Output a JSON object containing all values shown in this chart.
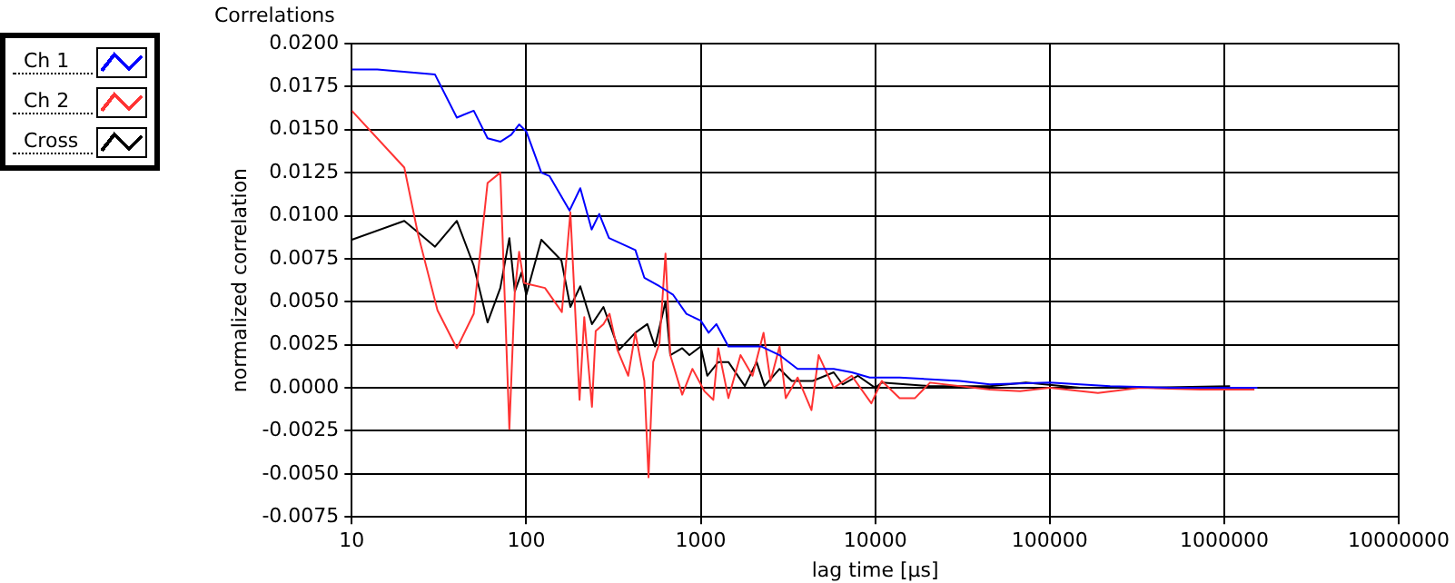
{
  "chart_data": {
    "type": "line",
    "title": "Correlations",
    "xlabel": "lag time [µs]",
    "ylabel": "normalized correlation",
    "log": "x",
    "xlim": [
      10,
      10000000
    ],
    "xticks": [
      10,
      100,
      1000,
      10000,
      100000,
      1000000,
      10000000
    ],
    "ylim": [
      -0.0075,
      0.02
    ],
    "yticks": [
      {
        "value": -0.0075,
        "label": "-0.0075"
      },
      {
        "value": -0.005,
        "label": "-0.0050"
      },
      {
        "value": -0.0025,
        "label": "-0.0025"
      },
      {
        "value": 0,
        "label": "0.0000"
      },
      {
        "value": 0.0025,
        "label": "0.0025"
      },
      {
        "value": 0.005,
        "label": "0.0050"
      },
      {
        "value": 0.0075,
        "label": "0.0075"
      },
      {
        "value": 0.01,
        "label": "0.0100"
      },
      {
        "value": 0.0125,
        "label": "0.0125"
      },
      {
        "value": 0.015,
        "label": "0.0150"
      },
      {
        "value": 0.0175,
        "label": "0.0175"
      },
      {
        "value": 0.02,
        "label": "0.0200"
      }
    ],
    "grid": true,
    "legend": "top left",
    "marker": "none",
    "line_style": "solid",
    "series": [
      {
        "name": "Ch 1",
        "color": "#0000ff",
        "x": [
          10,
          14,
          30,
          40,
          50,
          60,
          71,
          82,
          91,
          100,
          122,
          136,
          177,
          204,
          237,
          262,
          298,
          422,
          475,
          580,
          695,
          828,
          1000,
          1110,
          1230,
          1440,
          2230,
          2830,
          3590,
          4930,
          5780,
          7330,
          9300,
          13800,
          30500,
          45400,
          100000,
          222000,
          490000,
          1550000
        ],
        "values": [
          0.0185,
          0.0185,
          0.0182,
          0.0157,
          0.0161,
          0.0145,
          0.0143,
          0.0147,
          0.0153,
          0.0149,
          0.0125,
          0.0123,
          0.0103,
          0.0116,
          0.0092,
          0.0101,
          0.0087,
          0.008,
          0.0064,
          0.0059,
          0.0054,
          0.0043,
          0.0039,
          0.0032,
          0.0037,
          0.0024,
          0.0024,
          0.0019,
          0.0011,
          0.0011,
          0.0011,
          0.0009,
          0.0006,
          0.0006,
          0.0004,
          0.0002,
          0.0003,
          0.0001,
          0.0,
          0.0
        ]
      },
      {
        "name": "Ch 2",
        "color": "#ff3333",
        "x": [
          10,
          20,
          24,
          31,
          40,
          50,
          60,
          71,
          80,
          86,
          91,
          97,
          105,
          128,
          160,
          179,
          202,
          215,
          238,
          250,
          277,
          300,
          333,
          384,
          422,
          475,
          502,
          534,
          580,
          628,
          669,
          783,
          896,
          1050,
          1180,
          1260,
          1440,
          1690,
          1980,
          2290,
          2510,
          2830,
          3070,
          3590,
          4310,
          4740,
          5780,
          7330,
          9500,
          10900,
          13800,
          16900,
          20600,
          45400,
          67600,
          100000,
          189000,
          330000,
          728000,
          1490000
        ],
        "values": [
          0.0161,
          0.0128,
          0.0089,
          0.0045,
          0.0023,
          0.0043,
          0.0119,
          0.0125,
          -0.0024,
          0.0056,
          0.0079,
          0.0061,
          0.006,
          0.0058,
          0.0044,
          0.0102,
          -0.0007,
          0.0041,
          -0.0011,
          0.0033,
          0.0037,
          0.0043,
          0.0022,
          0.0007,
          0.0032,
          0.0004,
          -0.0052,
          0.0015,
          0.0026,
          0.0078,
          0.0019,
          -0.0004,
          0.0011,
          -0.0002,
          -0.0007,
          0.0023,
          -0.0006,
          0.0019,
          0.0007,
          0.0032,
          0.0004,
          0.0024,
          -0.0006,
          0.0006,
          -0.0013,
          0.0019,
          0.0,
          0.0007,
          -0.0009,
          0.0004,
          -0.0006,
          -0.0006,
          0.0003,
          -0.0001,
          -0.0002,
          0.0,
          -0.0003,
          0.0,
          -0.0001,
          -0.0001
        ]
      },
      {
        "name": "Cross",
        "color": "#000000",
        "x": [
          10,
          20,
          30,
          40,
          50,
          60,
          71,
          80,
          86,
          94,
          100,
          122,
          159,
          179,
          204,
          238,
          277,
          340,
          422,
          494,
          547,
          628,
          669,
          783,
          861,
          1000,
          1090,
          1260,
          1440,
          1790,
          2090,
          2320,
          2830,
          3320,
          4380,
          5780,
          6500,
          7950,
          10000,
          10900,
          20600,
          45400,
          73000,
          149000,
          330000,
          1080000
        ],
        "values": [
          0.0086,
          0.0097,
          0.0082,
          0.0097,
          0.0071,
          0.0038,
          0.0058,
          0.0087,
          0.0056,
          0.0067,
          0.0054,
          0.0086,
          0.0074,
          0.0047,
          0.0059,
          0.0037,
          0.0047,
          0.0022,
          0.0032,
          0.0037,
          0.0024,
          0.005,
          0.0019,
          0.0023,
          0.0019,
          0.0024,
          0.0007,
          0.0015,
          0.0015,
          0.0001,
          0.0015,
          0.0001,
          0.0011,
          0.0004,
          0.0004,
          0.0009,
          0.0002,
          0.0007,
          0.0,
          0.0003,
          0.0001,
          0.0001,
          0.0003,
          0.0,
          0.0,
          0.0001
        ]
      }
    ]
  }
}
